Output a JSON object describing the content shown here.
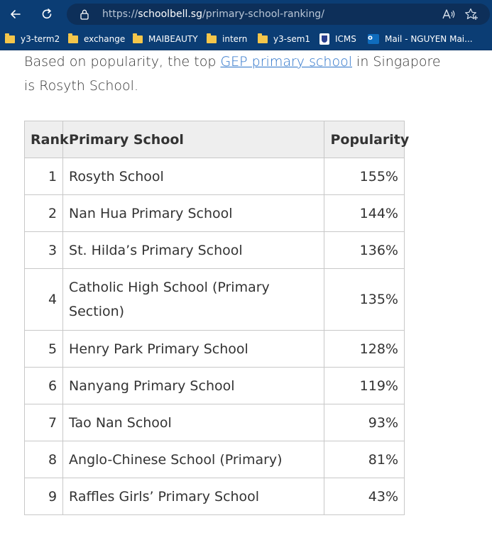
{
  "browser": {
    "url_scheme": "https://",
    "url_host": "schoolbell.sg",
    "url_path": "/primary-school-ranking/",
    "icons": {
      "back": "back-arrow-icon",
      "refresh": "refresh-icon",
      "lock": "lock-icon",
      "read_aloud": "read-aloud-icon",
      "favorite": "favorite-star-icon"
    }
  },
  "bookmarks": [
    {
      "label": "y3-term2",
      "icon": "folder-icon"
    },
    {
      "label": "exchange",
      "icon": "folder-icon"
    },
    {
      "label": "MAIBEAUTY",
      "icon": "folder-icon"
    },
    {
      "label": "intern",
      "icon": "folder-icon"
    },
    {
      "label": "y3-sem1",
      "icon": "folder-icon"
    },
    {
      "label": "ICMS",
      "icon": "shield-icon"
    },
    {
      "label": "Mail - NGUYEN Mai...",
      "icon": "outlook-icon"
    }
  ],
  "article": {
    "intro_before": "Based on popularity, the top ",
    "intro_link": "GEP primary school",
    "intro_after": " in Singapore is Rosyth School."
  },
  "table": {
    "headers": [
      "Rank",
      "Primary School",
      "Popularity"
    ],
    "rows": [
      {
        "rank": "1",
        "school": "Rosyth School",
        "popularity": "155%"
      },
      {
        "rank": "2",
        "school": "Nan Hua Primary School",
        "popularity": "144%"
      },
      {
        "rank": "3",
        "school": "St. Hilda’s Primary School",
        "popularity": "136%"
      },
      {
        "rank": "4",
        "school": "Catholic High School (Primary Section)",
        "popularity": "135%"
      },
      {
        "rank": "5",
        "school": "Henry Park Primary School",
        "popularity": "128%"
      },
      {
        "rank": "6",
        "school": "Nanyang Primary School",
        "popularity": "119%"
      },
      {
        "rank": "7",
        "school": "Tao Nan School",
        "popularity": "93%"
      },
      {
        "rank": "8",
        "school": "Anglo-Chinese School (Primary)",
        "popularity": "81%"
      },
      {
        "rank": "9",
        "school": "Raffles Girls’ Primary School",
        "popularity": "43%"
      }
    ]
  }
}
